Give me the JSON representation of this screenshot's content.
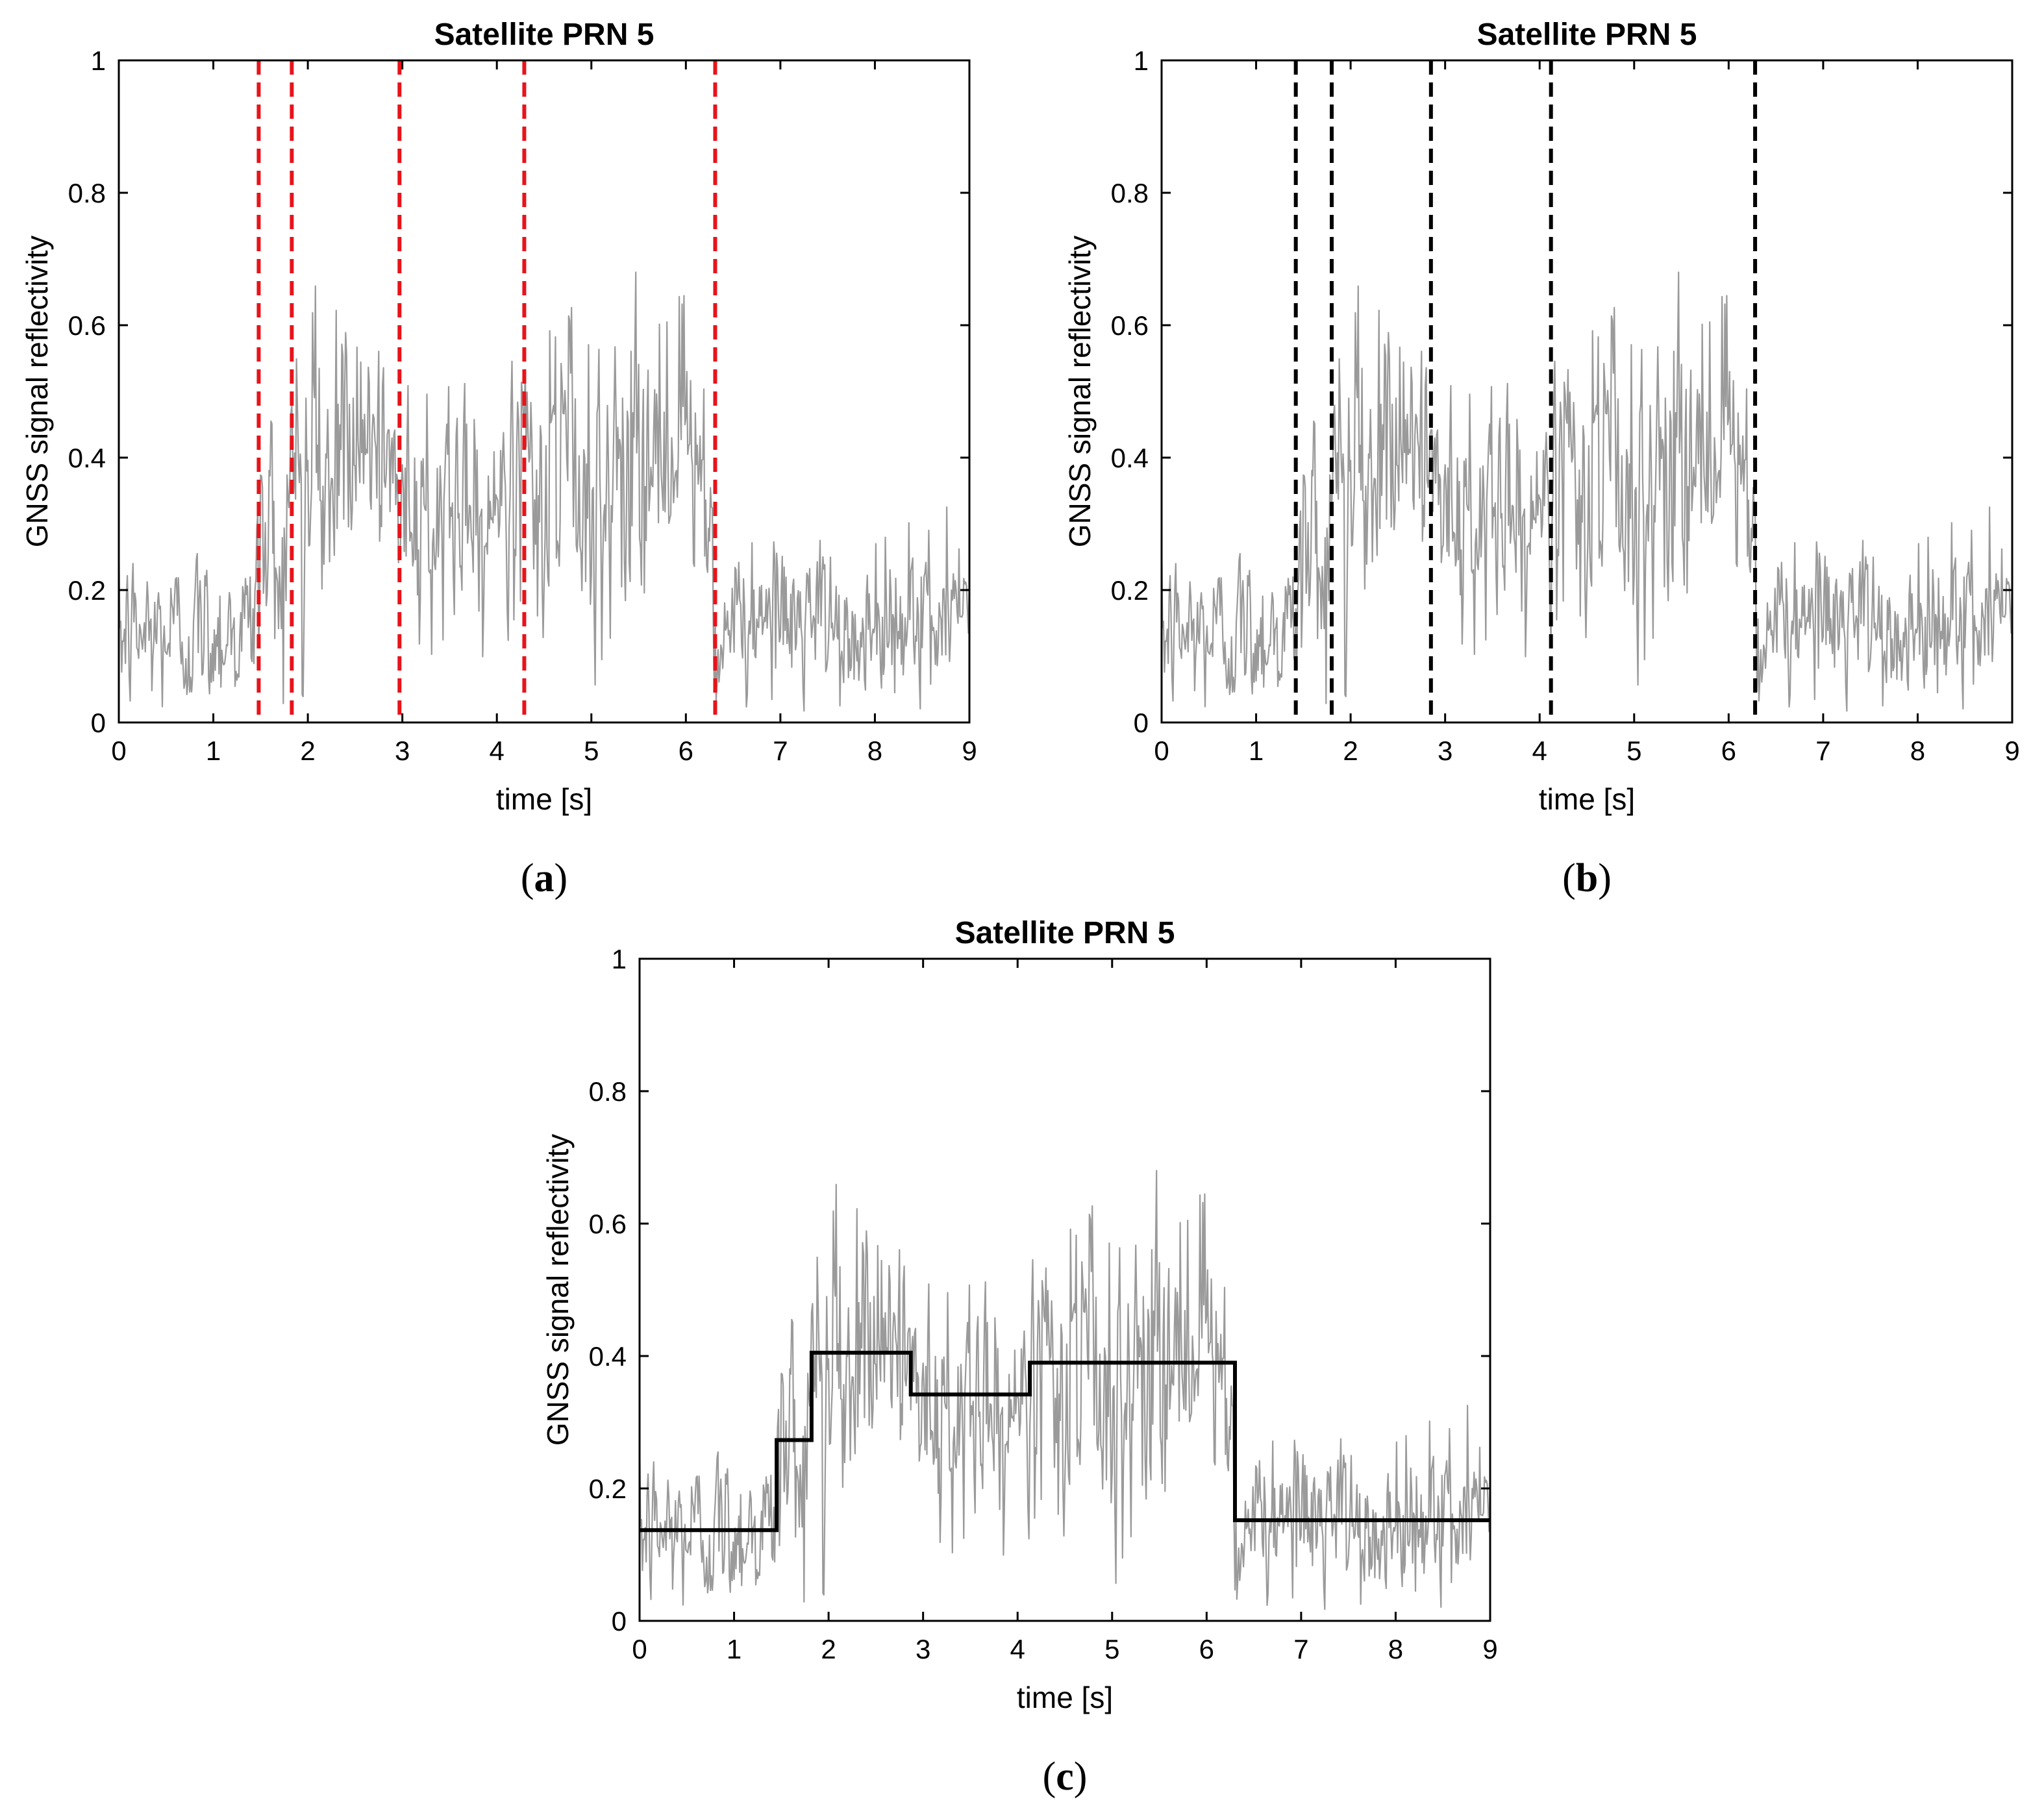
{
  "colors": {
    "signal": "#9a9a9a",
    "red_change": "#e8131a",
    "black_change": "#000000",
    "step": "#000000",
    "axes": "#000000"
  },
  "chart_data": [
    {
      "id": "a",
      "type": "line",
      "caption_letter": "a",
      "title": "Satellite PRN 5",
      "xlabel": "time [s]",
      "ylabel": "GNSS signal reflectivity",
      "xlim": [
        0,
        9
      ],
      "ylim": [
        0,
        1
      ],
      "xticks": [
        "0",
        "1",
        "2",
        "3",
        "4",
        "5",
        "6",
        "7",
        "8",
        "9"
      ],
      "yticks": [
        "0",
        "0.2",
        "0.4",
        "0.6",
        "0.8",
        "1"
      ],
      "series": [
        {
          "name": "reflectivity",
          "kind": "noisy-signal",
          "color": "#9a9a9a"
        }
      ],
      "change_points": [
        1.48,
        1.83,
        2.97,
        4.29,
        6.31
      ],
      "change_point_color": "#e8131a"
    },
    {
      "id": "b",
      "type": "line",
      "caption_letter": "b",
      "title": "Satellite PRN 5",
      "xlabel": "time [s]",
      "ylabel": "GNSS signal reflectivity",
      "xlim": [
        0,
        9
      ],
      "ylim": [
        0,
        1
      ],
      "xticks": [
        "0",
        "1",
        "2",
        "3",
        "4",
        "5",
        "6",
        "7",
        "8",
        "9"
      ],
      "yticks": [
        "0",
        "0.2",
        "0.4",
        "0.6",
        "0.8",
        "1"
      ],
      "series": [
        {
          "name": "reflectivity",
          "kind": "noisy-signal",
          "color": "#9a9a9a"
        }
      ],
      "change_points": [
        1.42,
        1.8,
        2.85,
        4.12,
        6.28
      ],
      "change_point_color": "#000000"
    },
    {
      "id": "c",
      "type": "line",
      "caption_letter": "c",
      "title": "Satellite PRN 5",
      "xlabel": "time [s]",
      "ylabel": "GNSS signal reflectivity",
      "xlim": [
        0,
        9
      ],
      "ylim": [
        0,
        1
      ],
      "xticks": [
        "0",
        "1",
        "2",
        "3",
        "4",
        "5",
        "6",
        "7",
        "8",
        "9"
      ],
      "yticks": [
        "0",
        "0.2",
        "0.4",
        "0.6",
        "0.8",
        "1"
      ],
      "series": [
        {
          "name": "reflectivity",
          "kind": "noisy-signal",
          "color": "#9a9a9a"
        },
        {
          "name": "piecewise-constant fit",
          "kind": "step",
          "color": "#000000",
          "breaks": [
            0,
            1.45,
            1.82,
            2.87,
            4.13,
            6.3,
            9
          ],
          "levels": [
            0.137,
            0.273,
            0.405,
            0.342,
            0.39,
            0.152
          ]
        }
      ],
      "change_points": []
    }
  ]
}
